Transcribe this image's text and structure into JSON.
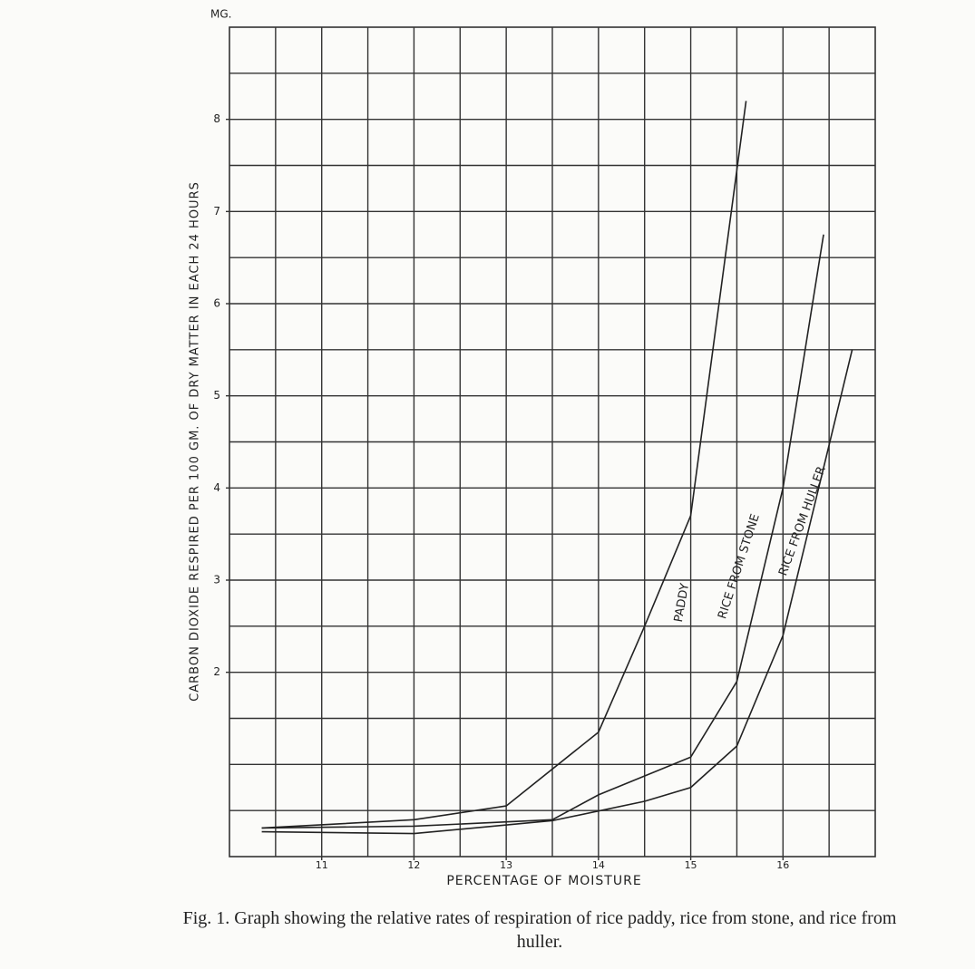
{
  "chart_data": {
    "type": "line",
    "y_unit": "MG.",
    "ylabel": "CARBON DIOXIDE RESPIRED PER 100 GM. OF DRY MATTER IN EACH 24 HOURS",
    "xlabel": "PERCENTAGE OF MOISTURE",
    "caption": "Fig. 1. Graph showing the relative rates of respiration of rice paddy, rice from stone, and rice from huller.",
    "xlim": [
      10,
      17
    ],
    "ylim": [
      0,
      9
    ],
    "xticks": [
      11,
      12,
      13,
      14,
      15,
      16
    ],
    "yticks": [
      2,
      3,
      4,
      5,
      6,
      7,
      8
    ],
    "grid": true,
    "series": [
      {
        "name": "PADDY",
        "color": "#222222",
        "x": [
          10.35,
          12,
          13,
          14,
          14.5,
          15,
          15.6
        ],
        "values": [
          0.31,
          0.4,
          0.55,
          1.35,
          2.5,
          3.7,
          8.2
        ]
      },
      {
        "name": "RICE FROM STONE",
        "color": "#222222",
        "x": [
          10.35,
          12,
          13.5,
          14,
          15,
          15.5,
          16,
          16.44
        ],
        "values": [
          0.31,
          0.33,
          0.4,
          0.67,
          1.08,
          1.9,
          4.0,
          6.75
        ]
      },
      {
        "name": "RICE FROM HULLER",
        "color": "#222222",
        "x": [
          10.35,
          12,
          13.5,
          14.5,
          15,
          15.5,
          16,
          16.75
        ],
        "values": [
          0.27,
          0.25,
          0.39,
          0.6,
          0.75,
          1.2,
          2.4,
          5.5
        ]
      }
    ]
  }
}
